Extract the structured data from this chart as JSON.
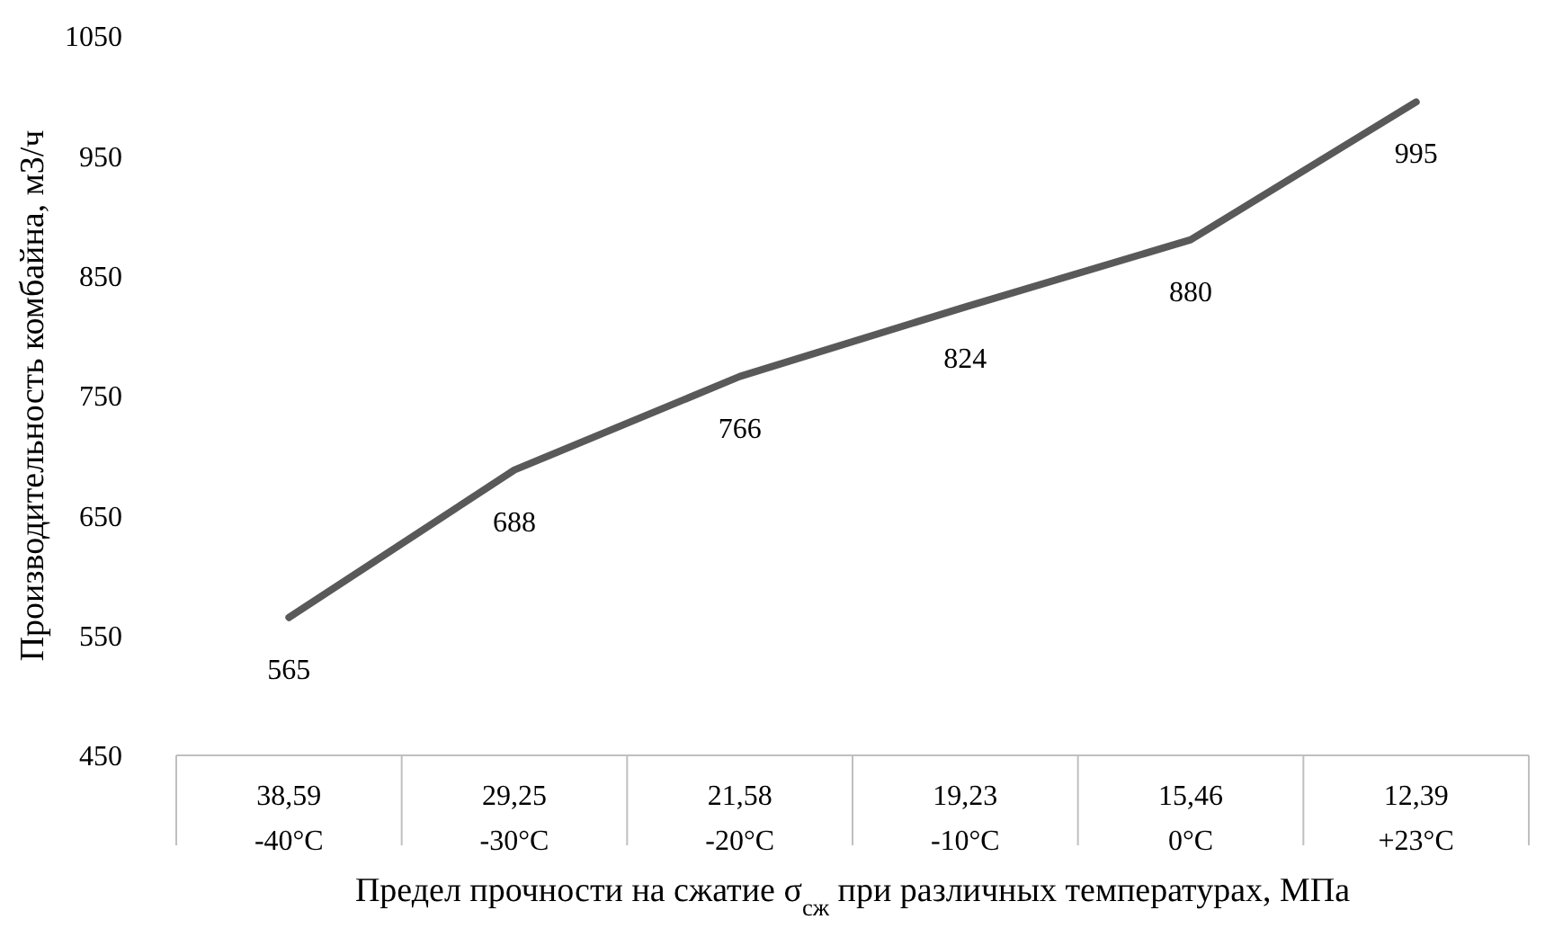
{
  "chart_data": {
    "type": "line",
    "xlabel": "Предел прочности на сжатие σ$_{сж}$ при различных температурах,  МПа",
    "ylabel": "Производительность комбайна, м3/ч",
    "categories": [
      "38,59\n-40°C",
      "29,25\n-30°C",
      "21,58\n-20°C",
      "19,23\n-10°C",
      "15,46\n0°C",
      "12,39\n+23°C"
    ],
    "series": [
      {
        "color": "#595959",
        "values": [
          565,
          688,
          766,
          824,
          880,
          995
        ]
      }
    ],
    "ylim": [
      450,
      1050
    ],
    "yticks": [
      450,
      550,
      650,
      750,
      850,
      950,
      1050
    ],
    "grid": false,
    "data_labels": true,
    "marker": "none",
    "line_style": "solid"
  }
}
